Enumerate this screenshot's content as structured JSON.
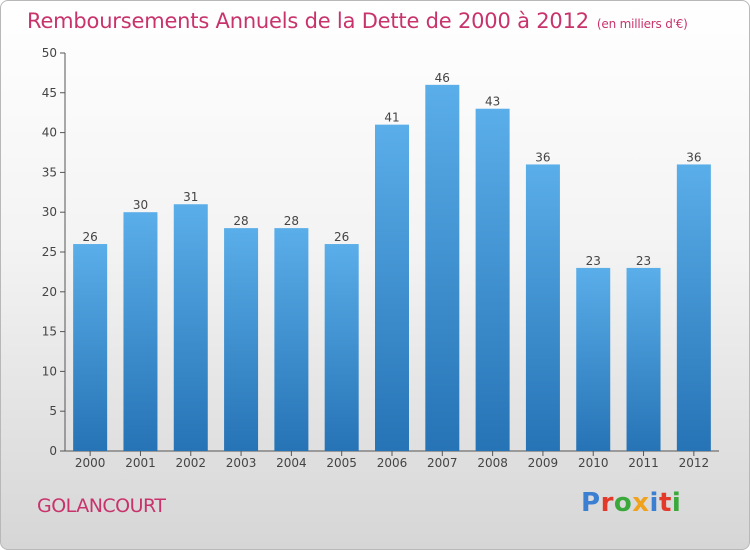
{
  "header": {
    "title": "Remboursements Annuels de la Dette de 2000 à 2012",
    "subtitle": "(en milliers d'€)"
  },
  "footer": {
    "place": "GOLANCOURT",
    "logo": "Proxiti"
  },
  "colors": {
    "title": "#c8336c",
    "bar_top": "#5aaee9",
    "bar_bottom": "#2673b5",
    "logo": [
      "#3b7fd3",
      "#e2392a",
      "#3aa83a",
      "#f0a21c",
      "#3b7fd3",
      "#e2392a",
      "#3aa83a"
    ]
  },
  "chart_data": {
    "type": "bar",
    "categories": [
      "2000",
      "2001",
      "2002",
      "2003",
      "2004",
      "2005",
      "2006",
      "2007",
      "2008",
      "2009",
      "2010",
      "2011",
      "2012"
    ],
    "values": [
      26,
      30,
      31,
      28,
      28,
      26,
      41,
      46,
      43,
      36,
      23,
      23,
      36
    ],
    "ylim": [
      0,
      50
    ],
    "yticks": [
      0,
      5,
      10,
      15,
      20,
      25,
      30,
      35,
      40,
      45,
      50
    ],
    "grid": false,
    "data_labels": true
  }
}
